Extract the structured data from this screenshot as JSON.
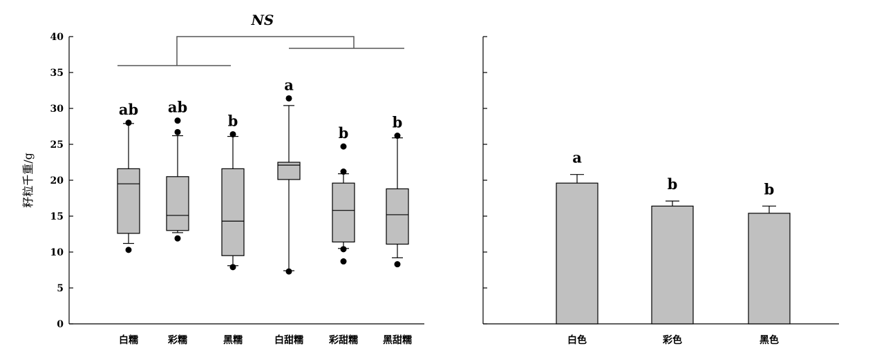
{
  "chart_data": [
    {
      "type": "box",
      "ylabel": "籽粒千重/g",
      "ylim": [
        0,
        40
      ],
      "yticks": [
        0,
        5,
        10,
        15,
        20,
        25,
        30,
        35,
        40
      ],
      "annotation": "NS",
      "categories": [
        "白糯",
        "彩糯",
        "黑糯",
        "白甜糯",
        "彩甜糯",
        "黑甜糯"
      ],
      "significance": [
        "ab",
        "ab",
        "b",
        "a",
        "b",
        "b"
      ],
      "boxes": [
        {
          "q1": 12.6,
          "median": 19.5,
          "q3": 21.6,
          "whisker_low": 11.2,
          "whisker_high": 27.9,
          "outliers": [
            10.3,
            28.0
          ]
        },
        {
          "q1": 13.0,
          "median": 15.1,
          "q3": 20.5,
          "whisker_low": 12.7,
          "whisker_high": 26.2,
          "outliers": [
            11.9,
            26.7,
            28.3
          ]
        },
        {
          "q1": 9.5,
          "median": 14.3,
          "q3": 21.6,
          "whisker_low": 8.1,
          "whisker_high": 26.1,
          "outliers": [
            7.9,
            26.4
          ]
        },
        {
          "q1": 20.1,
          "median": 22.1,
          "q3": 22.5,
          "whisker_low": 7.4,
          "whisker_high": 30.4,
          "outliers": [
            7.3,
            31.4
          ]
        },
        {
          "q1": 11.4,
          "median": 15.8,
          "q3": 19.6,
          "whisker_low": 10.5,
          "whisker_high": 20.9,
          "outliers": [
            8.7,
            10.4,
            21.2,
            24.7
          ]
        },
        {
          "q1": 11.1,
          "median": 15.2,
          "q3": 18.8,
          "whisker_low": 9.2,
          "whisker_high": 25.9,
          "outliers": [
            8.3,
            26.2
          ]
        }
      ]
    },
    {
      "type": "bar",
      "ylim": [
        0,
        40
      ],
      "categories": [
        "白色",
        "彩色",
        "黑色"
      ],
      "values": [
        19.6,
        16.4,
        15.4
      ],
      "errors": [
        1.2,
        0.7,
        1.0
      ],
      "significance": [
        "a",
        "b",
        "b"
      ]
    }
  ]
}
